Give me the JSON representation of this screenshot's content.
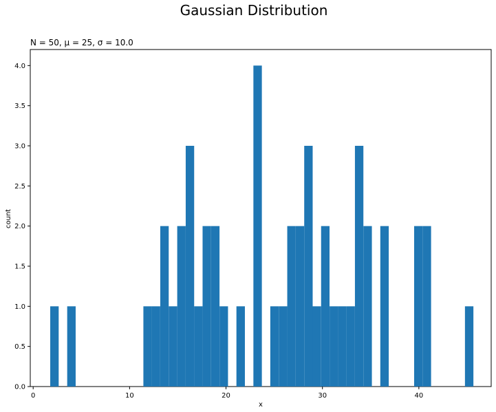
{
  "figure": {
    "suptitle": "Gaussian Distribution",
    "subtitle": "N = 50, μ = 25, σ = 10.0"
  },
  "chart_data": {
    "type": "bar",
    "title": "N = 50, μ = 25, σ = 10.0",
    "xlabel": "x",
    "ylabel": "count",
    "xlim": [
      -0.3,
      47.5
    ],
    "ylim": [
      0,
      4.2
    ],
    "xticks": [
      0,
      10,
      20,
      30,
      40
    ],
    "yticks": [
      0.0,
      0.5,
      1.0,
      1.5,
      2.0,
      2.5,
      3.0,
      3.5,
      4.0
    ],
    "bin_width": 0.877,
    "color": "#1f77b4",
    "bins": [
      {
        "x0": 1.77,
        "count": 1
      },
      {
        "x0": 3.53,
        "count": 1
      },
      {
        "x0": 11.43,
        "count": 1
      },
      {
        "x0": 12.3,
        "count": 1
      },
      {
        "x0": 13.18,
        "count": 2
      },
      {
        "x0": 14.06,
        "count": 1
      },
      {
        "x0": 14.94,
        "count": 2
      },
      {
        "x0": 15.82,
        "count": 3
      },
      {
        "x0": 16.69,
        "count": 1
      },
      {
        "x0": 17.57,
        "count": 2
      },
      {
        "x0": 18.45,
        "count": 2
      },
      {
        "x0": 19.33,
        "count": 1
      },
      {
        "x0": 21.08,
        "count": 1
      },
      {
        "x0": 22.84,
        "count": 4
      },
      {
        "x0": 24.59,
        "count": 1
      },
      {
        "x0": 25.47,
        "count": 1
      },
      {
        "x0": 26.35,
        "count": 2
      },
      {
        "x0": 27.23,
        "count": 2
      },
      {
        "x0": 28.11,
        "count": 3
      },
      {
        "x0": 28.98,
        "count": 1
      },
      {
        "x0": 29.86,
        "count": 2
      },
      {
        "x0": 30.74,
        "count": 1
      },
      {
        "x0": 31.61,
        "count": 1
      },
      {
        "x0": 32.49,
        "count": 1
      },
      {
        "x0": 33.37,
        "count": 3
      },
      {
        "x0": 34.25,
        "count": 2
      },
      {
        "x0": 36.0,
        "count": 2
      },
      {
        "x0": 39.51,
        "count": 2
      },
      {
        "x0": 40.39,
        "count": 2
      },
      {
        "x0": 44.78,
        "count": 1
      }
    ]
  }
}
